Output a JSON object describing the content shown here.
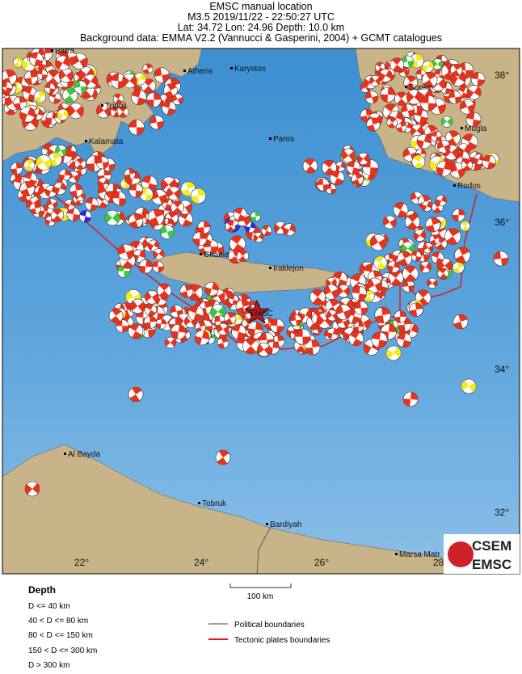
{
  "header": {
    "title": "EMSC manual location",
    "event": "M3.5  2019/11/22 - 22:50:27 UTC",
    "location": "Lat: 34.72    Lon: 24.96       Depth: 10.0 km",
    "background": "Background data: EMMA V2.2 (Vannucci & Gasperini, 2004) + GCMT catalogues"
  },
  "map": {
    "places": [
      "Patra",
      "Athens",
      "Karystos",
      "Tripoli",
      "Kalamata",
      "Paros",
      "Soeke",
      "Mugla",
      "Rodos",
      "Chania",
      "Iraklejon",
      "Al Bayda",
      "Tobruk",
      "Bardiyah",
      "Marsa Matr"
    ],
    "lon_labels": [
      "22°",
      "24°",
      "26°",
      "28°"
    ],
    "lat_labels": [
      "38°",
      "36°",
      "34°",
      "32°"
    ],
    "epicenter_label": "EMSC"
  },
  "legend": {
    "title": "Depth",
    "depth_classes": [
      "D <= 40 km",
      "40 < D <= 80 km",
      "80 < D <= 150 km",
      "150 < D <= 300 km",
      "D > 300 km"
    ],
    "scale": "100 km",
    "boundaries": [
      "Political boundaries",
      "Tectonic plates boundaries"
    ]
  },
  "logo": [
    "CSEM",
    "EMSC"
  ]
}
